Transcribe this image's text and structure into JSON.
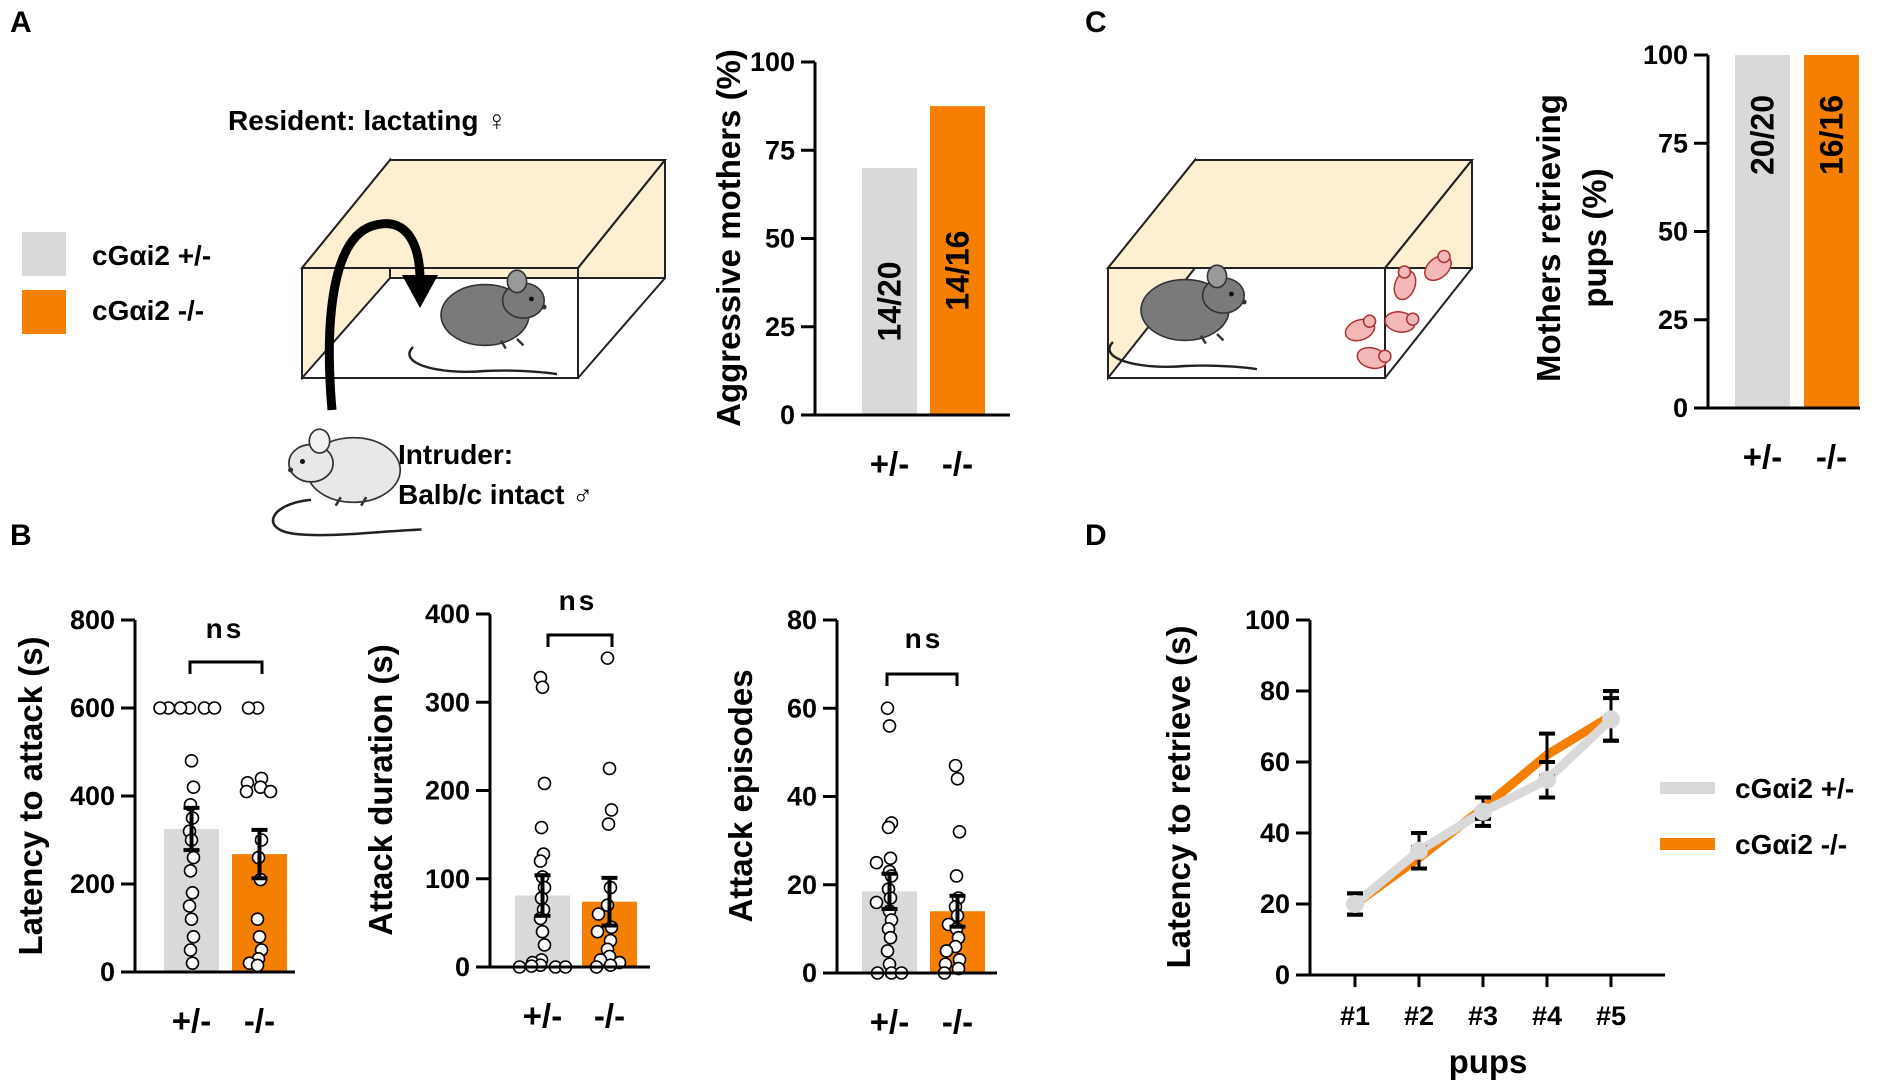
{
  "panel_labels": [
    "A",
    "B",
    "C",
    "D"
  ],
  "colors": {
    "het": "#d9d9d9",
    "ko": "#f47f00",
    "box_fill": "#fdf0d2",
    "mouse_dark": "#7a7a7a",
    "mouse_light": "#e8e8e8",
    "pup": "#f4b8b8"
  },
  "legend": {
    "het": "cGαi2 +/-",
    "ko": "cGαi2 -/-"
  },
  "scheme_A": {
    "resident": "Resident: lactating ♀",
    "intruder_line1": "Intruder:",
    "intruder_line2": "Balb/c intact ♂"
  },
  "chart_data": [
    {
      "id": "A",
      "type": "bar",
      "title": "",
      "categories": [
        "+/-",
        "-/-"
      ],
      "values": [
        70,
        87.5
      ],
      "bar_labels": [
        "14/20",
        "14/16"
      ],
      "ylabel": "Aggressive mothers (%)",
      "xlabel": "",
      "ylim": [
        0,
        100
      ],
      "yticks": [
        0,
        25,
        50,
        75,
        100
      ]
    },
    {
      "id": "B1",
      "type": "bar",
      "title": "",
      "categories": [
        "+/-",
        "-/-"
      ],
      "values": [
        325,
        268
      ],
      "errors": [
        48,
        55
      ],
      "points": [
        [
          600,
          600,
          600,
          600,
          600,
          600,
          480,
          420,
          380,
          350,
          320,
          300,
          260,
          230,
          180,
          150,
          120,
          80,
          50,
          20
        ],
        [
          600,
          600,
          440,
          430,
          420,
          410,
          410,
          300,
          260,
          210,
          120,
          80,
          50,
          30,
          20,
          15
        ]
      ],
      "ylabel": "Latency to attack (s)",
      "xlabel": "",
      "ylim": [
        0,
        800
      ],
      "yticks": [
        0,
        200,
        400,
        600,
        800
      ],
      "annotation": "ns"
    },
    {
      "id": "B2",
      "type": "bar",
      "title": "",
      "categories": [
        "+/-",
        "-/-"
      ],
      "values": [
        81,
        74
      ],
      "errors": [
        23,
        27
      ],
      "points": [
        [
          328,
          317,
          208,
          158,
          128,
          120,
          102,
          90,
          78,
          65,
          55,
          40,
          25,
          8,
          5,
          2,
          1,
          0,
          0,
          0
        ],
        [
          350,
          225,
          178,
          162,
          90,
          70,
          60,
          45,
          40,
          30,
          20,
          12,
          8,
          5,
          2,
          0
        ]
      ],
      "ylabel": "Attack duration (s)",
      "xlabel": "",
      "ylim": [
        0,
        400
      ],
      "yticks": [
        0,
        100,
        200,
        300,
        400
      ],
      "annotation": "ns"
    },
    {
      "id": "B3",
      "type": "bar",
      "title": "",
      "categories": [
        "+/-",
        "-/-"
      ],
      "values": [
        18.5,
        14
      ],
      "errors": [
        4,
        3.5
      ],
      "points": [
        [
          60,
          56,
          34,
          33,
          26,
          25,
          23,
          22,
          19,
          17,
          16,
          14,
          12,
          10,
          8,
          5,
          2,
          0,
          0,
          0
        ],
        [
          47,
          44,
          32,
          22,
          17,
          15,
          13,
          11,
          10,
          8,
          6,
          5,
          3,
          2,
          1,
          0
        ]
      ],
      "ylabel": "Attack episodes",
      "xlabel": "",
      "ylim": [
        0,
        80
      ],
      "yticks": [
        0,
        20,
        40,
        60,
        80
      ],
      "annotation": "ns"
    },
    {
      "id": "C",
      "type": "bar",
      "title": "",
      "categories": [
        "+/-",
        "-/-"
      ],
      "values": [
        100,
        100
      ],
      "bar_labels": [
        "20/20",
        "16/16"
      ],
      "ylabel_lines": [
        "Mothers retrieving",
        "pups (%)"
      ],
      "xlabel": "",
      "ylim": [
        0,
        100
      ],
      "yticks": [
        0,
        25,
        50,
        75,
        100
      ]
    },
    {
      "id": "D",
      "type": "line",
      "title": "",
      "x": [
        "#1",
        "#2",
        "#3",
        "#4",
        "#5"
      ],
      "series": [
        {
          "name": "cGαi2 +/-",
          "values": [
            20,
            35,
            46,
            55,
            72
          ],
          "errors": [
            3,
            5,
            4,
            5,
            6
          ]
        },
        {
          "name": "cGαi2 -/-",
          "values": [
            20,
            33,
            47,
            62,
            73
          ],
          "errors": [
            3,
            3,
            3,
            6,
            7
          ]
        }
      ],
      "ylabel": "Latency to retrieve (s)",
      "xlabel": "pups",
      "ylim": [
        0,
        100
      ],
      "yticks": [
        0,
        20,
        40,
        60,
        80,
        100
      ],
      "legend_position": "right"
    }
  ]
}
